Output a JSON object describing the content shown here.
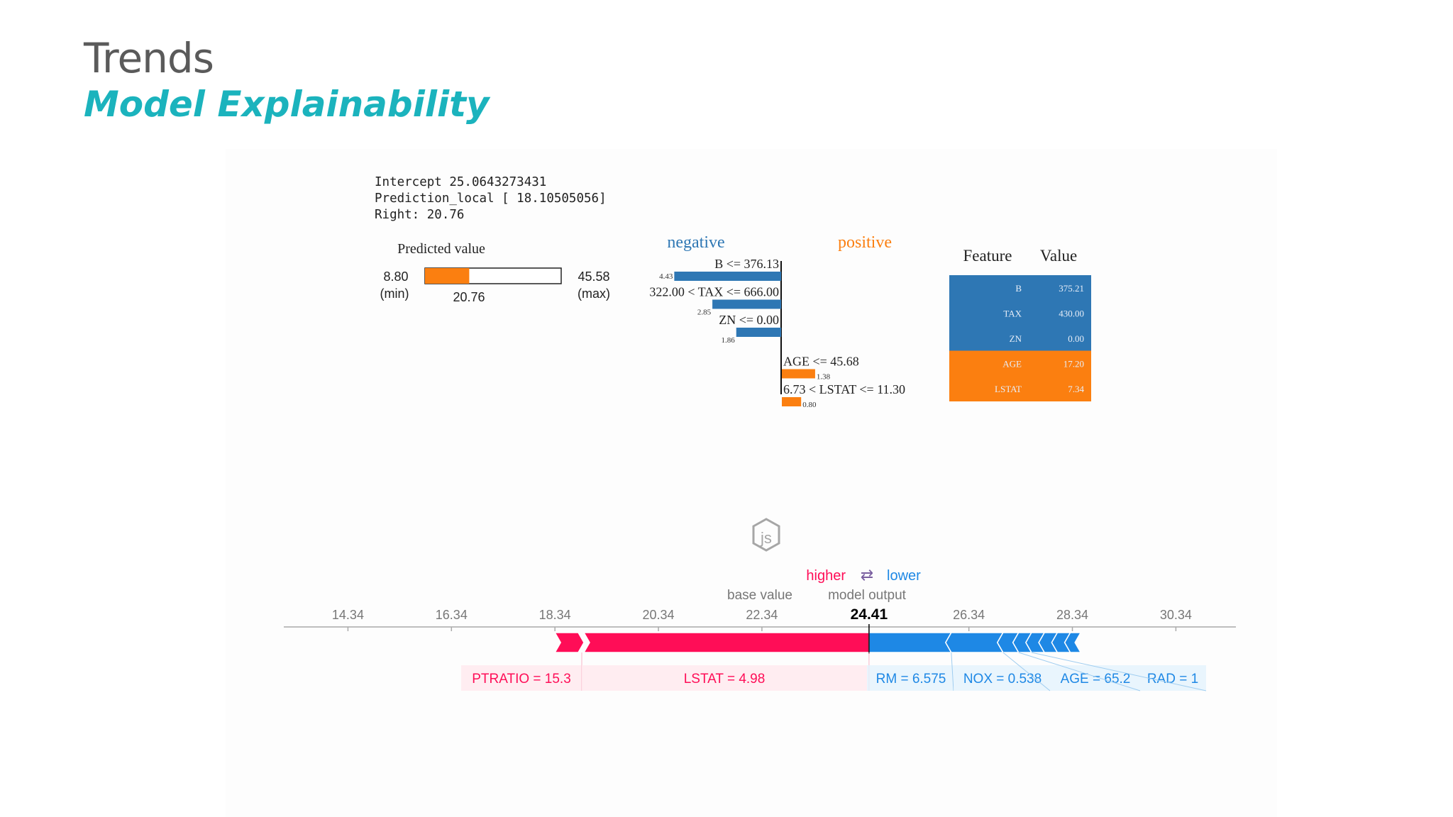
{
  "slide": {
    "title": "Trends",
    "subtitle": "Model Explainability"
  },
  "lime": {
    "intercept_line": "Intercept 25.0643273431",
    "prediction_line": "Prediction_local [ 18.10505056]",
    "right_line": "Right: 20.76"
  },
  "colors": {
    "lime_negative": "#2e77b4",
    "lime_positive": "#fb7f10",
    "shap_higher": "#ff0d57",
    "shap_lower": "#1e88e5",
    "title": "#5a5a5a",
    "subtitle": "#1bb3bd"
  },
  "chart_data": [
    {
      "type": "bar",
      "title": "Predicted value",
      "min_value": "8.80",
      "min_label": "(min)",
      "max_value": "45.58",
      "max_label": "(max)",
      "predicted_value": "20.76",
      "values": [
        8.8,
        20.76,
        45.58
      ]
    },
    {
      "type": "bar",
      "orientation": "horizontal",
      "negative_label": "negative",
      "positive_label": "positive",
      "bars": [
        {
          "label": "B <= 376.13",
          "value": -4.43,
          "value_label": "4.43"
        },
        {
          "label": "322.00 < TAX <= 666.00",
          "value": -2.85,
          "value_label": "2.85"
        },
        {
          "label": "ZN <= 0.00",
          "value": -1.86,
          "value_label": "1.86"
        },
        {
          "label": "AGE <= 45.68",
          "value": 1.38,
          "value_label": "1.38"
        },
        {
          "label": "6.73 < LSTAT <= 11.30",
          "value": 0.8,
          "value_label": "0.80"
        }
      ]
    },
    {
      "type": "table",
      "headers": [
        "Feature",
        "Value"
      ],
      "rows": [
        {
          "feature": "B",
          "value": "375.21",
          "sign": "negative"
        },
        {
          "feature": "TAX",
          "value": "430.00",
          "sign": "negative"
        },
        {
          "feature": "ZN",
          "value": "0.00",
          "sign": "negative"
        },
        {
          "feature": "AGE",
          "value": "17.20",
          "sign": "positive"
        },
        {
          "feature": "LSTAT",
          "value": "7.34",
          "sign": "positive"
        }
      ]
    },
    {
      "type": "bar",
      "chart_kind": "shap-force-plot",
      "logo": "js",
      "legend": {
        "higher": "higher",
        "arrow": "⇄",
        "lower": "lower"
      },
      "base_value_label": "base value",
      "model_output_label": "model output",
      "base_value": 22.34,
      "output_value": 24.41,
      "output_value_text": "24.41",
      "ticks": [
        "14.34",
        "16.34",
        "18.34",
        "20.34",
        "22.34",
        "24.41",
        "26.34",
        "28.34",
        "30.34"
      ],
      "xlim": [
        13.1,
        31.5
      ],
      "higher_features": [
        {
          "label": "PTRATIO = 15.3",
          "from": 18.34,
          "to": 18.9
        },
        {
          "label": "LSTAT = 4.98",
          "from": 18.9,
          "to": 24.41
        }
      ],
      "lower_features": [
        {
          "label": "RM = 6.575",
          "from": 24.41,
          "to": 26.0
        },
        {
          "label": "NOX = 0.538",
          "from": 26.0,
          "to": 27.0
        },
        {
          "label": "AGE = 65.2",
          "from": 27.0,
          "to": 27.3
        },
        {
          "label": "RAD = 1",
          "from": 27.3,
          "to": 27.55
        },
        {
          "label": "",
          "from": 27.55,
          "to": 27.8
        },
        {
          "label": "",
          "from": 27.8,
          "to": 28.05
        },
        {
          "label": "",
          "from": 28.05,
          "to": 28.3
        },
        {
          "label": "",
          "from": 28.3,
          "to": 28.5
        }
      ]
    }
  ]
}
